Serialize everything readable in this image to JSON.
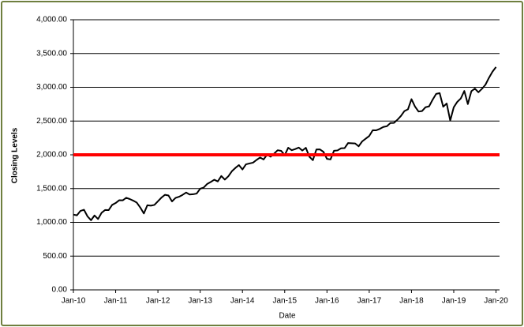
{
  "chart_data": {
    "type": "line",
    "x_label": "Date",
    "y_label": "Closing Levels",
    "x": [
      "2010-01",
      "2010-02",
      "2010-03",
      "2010-04",
      "2010-05",
      "2010-06",
      "2010-07",
      "2010-08",
      "2010-09",
      "2010-10",
      "2010-11",
      "2010-12",
      "2011-01",
      "2011-02",
      "2011-03",
      "2011-04",
      "2011-05",
      "2011-06",
      "2011-07",
      "2011-08",
      "2011-09",
      "2011-10",
      "2011-11",
      "2011-12",
      "2012-01",
      "2012-02",
      "2012-03",
      "2012-04",
      "2012-05",
      "2012-06",
      "2012-07",
      "2012-08",
      "2012-09",
      "2012-10",
      "2012-11",
      "2012-12",
      "2013-01",
      "2013-02",
      "2013-03",
      "2013-04",
      "2013-05",
      "2013-06",
      "2013-07",
      "2013-08",
      "2013-09",
      "2013-10",
      "2013-11",
      "2013-12",
      "2014-01",
      "2014-02",
      "2014-03",
      "2014-04",
      "2014-05",
      "2014-06",
      "2014-07",
      "2014-08",
      "2014-09",
      "2014-10",
      "2014-11",
      "2014-12",
      "2015-01",
      "2015-02",
      "2015-03",
      "2015-04",
      "2015-05",
      "2015-06",
      "2015-07",
      "2015-08",
      "2015-09",
      "2015-10",
      "2015-11",
      "2015-12",
      "2016-01",
      "2016-02",
      "2016-03",
      "2016-04",
      "2016-05",
      "2016-06",
      "2016-07",
      "2016-08",
      "2016-09",
      "2016-10",
      "2016-11",
      "2016-12",
      "2017-01",
      "2017-02",
      "2017-03",
      "2017-04",
      "2017-05",
      "2017-06",
      "2017-07",
      "2017-08",
      "2017-09",
      "2017-10",
      "2017-11",
      "2017-12",
      "2018-01",
      "2018-02",
      "2018-03",
      "2018-04",
      "2018-05",
      "2018-06",
      "2018-07",
      "2018-08",
      "2018-09",
      "2018-10",
      "2018-11",
      "2018-12",
      "2019-01",
      "2019-02",
      "2019-03",
      "2019-04",
      "2019-05",
      "2019-06",
      "2019-07",
      "2019-08",
      "2019-09",
      "2019-10",
      "2019-11",
      "2019-12",
      "2020-01"
    ],
    "series": [
      {
        "color": "#000000",
        "values": [
          1115,
          1104,
          1169,
          1187,
          1089,
          1031,
          1102,
          1049,
          1141,
          1183,
          1181,
          1258,
          1286,
          1327,
          1326,
          1364,
          1345,
          1321,
          1292,
          1219,
          1131,
          1253,
          1247,
          1258,
          1312,
          1366,
          1408,
          1398,
          1310,
          1362,
          1379,
          1407,
          1441,
          1412,
          1416,
          1426,
          1498,
          1515,
          1569,
          1598,
          1631,
          1606,
          1686,
          1633,
          1682,
          1757,
          1806,
          1848,
          1783,
          1859,
          1872,
          1884,
          1924,
          1960,
          1931,
          2003,
          1972,
          2018,
          2068,
          2059,
          1995,
          2105,
          2068,
          2086,
          2107,
          2063,
          2104,
          1972,
          1920,
          2079,
          2080,
          2044,
          1940,
          1932,
          2060,
          2065,
          2097,
          2099,
          2174,
          2171,
          2168,
          2126,
          2199,
          2239,
          2279,
          2364,
          2363,
          2384,
          2412,
          2423,
          2470,
          2472,
          2519,
          2575,
          2648,
          2674,
          2824,
          2714,
          2641,
          2648,
          2705,
          2718,
          2816,
          2902,
          2914,
          2712,
          2760,
          2507,
          2704,
          2784,
          2834,
          2946,
          2752,
          2942,
          2980,
          2926,
          2977,
          3038,
          3141,
          3231,
          3300
        ]
      }
    ],
    "reference_line": {
      "value": 2000,
      "color": "#ff0000"
    },
    "xlim": [
      "2010-01",
      "2020-02"
    ],
    "xticks": [
      {
        "value": "2010-01",
        "label": "Jan-10"
      },
      {
        "value": "2011-01",
        "label": "Jan-11"
      },
      {
        "value": "2012-01",
        "label": "Jan-12"
      },
      {
        "value": "2013-01",
        "label": "Jan-13"
      },
      {
        "value": "2014-01",
        "label": "Jan-14"
      },
      {
        "value": "2015-01",
        "label": "Jan-15"
      },
      {
        "value": "2016-01",
        "label": "Jan-16"
      },
      {
        "value": "2017-01",
        "label": "Jan-17"
      },
      {
        "value": "2018-01",
        "label": "Jan-18"
      },
      {
        "value": "2019-01",
        "label": "Jan-19"
      },
      {
        "value": "2020-01",
        "label": "Jan-20"
      }
    ],
    "ylim": [
      0,
      4000
    ],
    "yticks": [
      {
        "value": 0,
        "label": "0.00"
      },
      {
        "value": 500,
        "label": "500.00"
      },
      {
        "value": 1000,
        "label": "1,000.00"
      },
      {
        "value": 1500,
        "label": "1,500.00"
      },
      {
        "value": 2000,
        "label": "2,000.00"
      },
      {
        "value": 2500,
        "label": "2,500.00"
      },
      {
        "value": 3000,
        "label": "3,000.00"
      },
      {
        "value": 3500,
        "label": "3,500.00"
      },
      {
        "value": 4000,
        "label": "4,000.00"
      }
    ],
    "grid": true
  }
}
